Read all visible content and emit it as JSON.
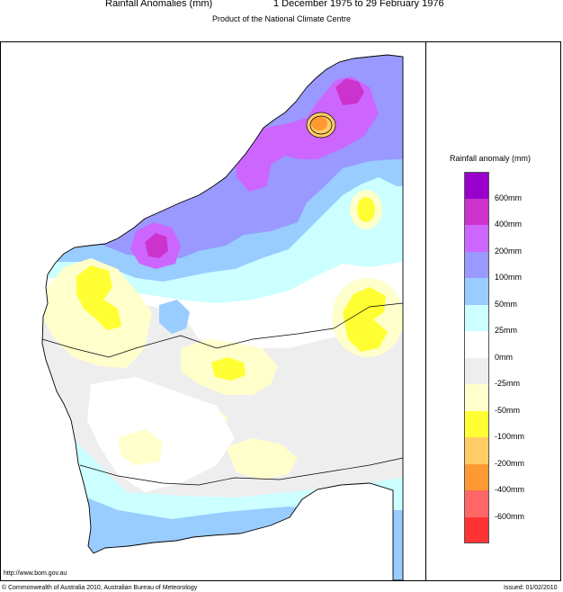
{
  "header": {
    "title_left": "Rainfall Anomalies (mm)",
    "title_right": "1 December 1975 to 29 February 1976",
    "subtitle": "Product of the National Climate Centre"
  },
  "legend": {
    "title": "Rainfall anomaly (mm)",
    "bins": [
      {
        "color": "#9900cc",
        "label": "600mm"
      },
      {
        "color": "#cc33cc",
        "label": "400mm"
      },
      {
        "color": "#cc66ff",
        "label": "200mm"
      },
      {
        "color": "#9999ff",
        "label": "100mm"
      },
      {
        "color": "#99ccff",
        "label": "50mm"
      },
      {
        "color": "#ccffff",
        "label": "25mm"
      },
      {
        "color": "#ffffff",
        "label": "0mm"
      },
      {
        "color": "#eeeeee",
        "label": "-25mm"
      },
      {
        "color": "#ffffcc",
        "label": "-50mm"
      },
      {
        "color": "#ffff33",
        "label": "-100mm"
      },
      {
        "color": "#ffcc66",
        "label": "-200mm"
      },
      {
        "color": "#ff9933",
        "label": "-400mm"
      },
      {
        "color": "#ff6666",
        "label": "-600mm"
      },
      {
        "color": "#ff3333",
        "label": ""
      }
    ]
  },
  "footer": {
    "url": "http://www.bom.gov.au",
    "copyright": "© Commonwealth of Australia 2010, Australian Bureau of Meteorology",
    "issued": "Issued: 01/02/2010"
  },
  "map": {
    "region": "Western Australia",
    "colors": {
      "grey": "#eeeeee",
      "cream": "#ffffcc",
      "yellow": "#ffff33",
      "cyan": "#ccffff",
      "lightblue": "#99ccff",
      "blue": "#9999ff",
      "violet": "#cc66ff",
      "magenta": "#cc33cc",
      "purple": "#9900cc",
      "orange": "#ff9933",
      "amber": "#ffcc66"
    }
  }
}
